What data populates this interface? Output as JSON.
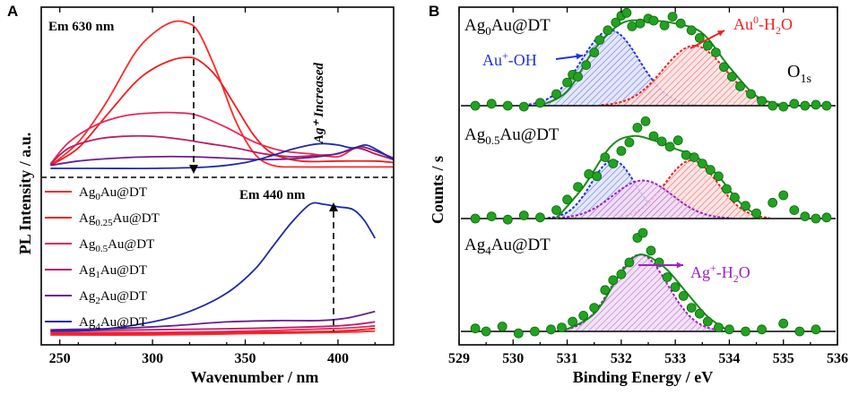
{
  "panel_a": {
    "label": "A",
    "ylabel": "PL Intensity / a.u.",
    "em_top": "Em 630 nm",
    "em_bottom": "Em 440 nm",
    "trend": "Ag⁺ Increased"
  },
  "panel_b": {
    "label": "B",
    "ylabel": "Counts / s",
    "o1s_main": "O",
    "o1s_sub": "1s"
  },
  "chart_data": [
    {
      "type": "line",
      "title": "",
      "xlabel": "Wavenumber / nm",
      "ylabel": "PL Intensity / a.u.",
      "xlim": [
        240,
        430
      ],
      "xticks": [
        "250",
        "300",
        "350",
        "400"
      ],
      "legend": [
        {
          "base": "Ag",
          "sub": "0",
          "rest": "Au@DT",
          "color": "#ff2a2a"
        },
        {
          "base": "Ag",
          "sub": "0.25",
          "rest": "Au@DT",
          "color": "#f21c1c"
        },
        {
          "base": "Ag",
          "sub": "0.5",
          "rest": "Au@DT",
          "color": "#e8285a"
        },
        {
          "base": "Ag",
          "sub": "1",
          "rest": "Au@DT",
          "color": "#b81e68"
        },
        {
          "base": "Ag",
          "sub": "2",
          "rest": "Au@DT",
          "color": "#6a1e8c"
        },
        {
          "base": "Ag",
          "sub": "4",
          "rest": "Au@DT",
          "color": "#1c2aa8"
        }
      ],
      "em630_series": [
        {
          "name": "Ag0Au@DT",
          "color": "#ff2a2a",
          "x": [
            245,
            260,
            275,
            290,
            300,
            310,
            318,
            325,
            335,
            345,
            355,
            365,
            380,
            400,
            420,
            430
          ],
          "y": [
            0.02,
            0.18,
            0.45,
            0.78,
            0.92,
            1.0,
            1.0,
            0.93,
            0.65,
            0.32,
            0.1,
            0.02,
            0.01,
            0.01,
            0.01,
            0.01
          ]
        },
        {
          "name": "Ag0.25Au@DT",
          "color": "#f21c1c",
          "x": [
            245,
            260,
            275,
            290,
            300,
            310,
            318,
            325,
            335,
            345,
            355,
            365,
            380,
            400,
            420,
            430
          ],
          "y": [
            0.02,
            0.14,
            0.36,
            0.58,
            0.68,
            0.74,
            0.76,
            0.74,
            0.62,
            0.42,
            0.22,
            0.1,
            0.05,
            0.05,
            0.05,
            0.04
          ]
        },
        {
          "name": "Ag0.5Au@DT",
          "color": "#e8285a",
          "x": [
            245,
            255,
            270,
            285,
            300,
            315,
            325,
            340,
            355,
            370,
            385,
            400,
            410,
            420,
            430
          ],
          "y": [
            0.03,
            0.18,
            0.3,
            0.36,
            0.38,
            0.38,
            0.36,
            0.28,
            0.18,
            0.12,
            0.1,
            0.08,
            0.14,
            0.1,
            0.06
          ]
        },
        {
          "name": "Ag1Au@DT",
          "color": "#b81e68",
          "x": [
            245,
            255,
            270,
            285,
            300,
            315,
            330,
            345,
            360,
            375,
            390,
            400,
            410,
            420,
            430
          ],
          "y": [
            0.03,
            0.14,
            0.2,
            0.22,
            0.22,
            0.2,
            0.17,
            0.14,
            0.1,
            0.08,
            0.09,
            0.1,
            0.14,
            0.1,
            0.06
          ]
        },
        {
          "name": "Ag2Au@DT",
          "color": "#6a1e8c",
          "x": [
            245,
            260,
            280,
            300,
            320,
            340,
            360,
            380,
            395,
            405,
            412,
            420,
            430
          ],
          "y": [
            0.02,
            0.05,
            0.07,
            0.08,
            0.08,
            0.07,
            0.06,
            0.07,
            0.09,
            0.12,
            0.15,
            0.12,
            0.07
          ]
        },
        {
          "name": "Ag4Au@DT",
          "color": "#1c2aa8",
          "x": [
            245,
            270,
            300,
            330,
            350,
            365,
            375,
            385,
            392,
            400,
            408,
            415,
            422,
            430
          ],
          "y": [
            0.0,
            0.0,
            0.0,
            0.01,
            0.04,
            0.09,
            0.13,
            0.16,
            0.17,
            0.16,
            0.14,
            0.16,
            0.12,
            0.06
          ]
        }
      ],
      "em440_series": [
        {
          "name": "Ag0Au@DT",
          "color": "#ff2a2a",
          "x": [
            245,
            300,
            350,
            400,
            420
          ],
          "y": [
            0.0,
            0.0,
            0.01,
            0.02,
            0.03
          ]
        },
        {
          "name": "Ag0.25Au@DT",
          "color": "#f21c1c",
          "x": [
            245,
            300,
            350,
            400,
            420
          ],
          "y": [
            0.01,
            0.01,
            0.02,
            0.03,
            0.05
          ]
        },
        {
          "name": "Ag0.5Au@DT",
          "color": "#e8285a",
          "x": [
            245,
            300,
            350,
            400,
            420
          ],
          "y": [
            0.02,
            0.02,
            0.03,
            0.05,
            0.07
          ]
        },
        {
          "name": "Ag1Au@DT",
          "color": "#b81e68",
          "x": [
            245,
            300,
            350,
            400,
            420
          ],
          "y": [
            0.03,
            0.04,
            0.05,
            0.07,
            0.1
          ]
        },
        {
          "name": "Ag2Au@DT",
          "color": "#6a1e8c",
          "x": [
            245,
            280,
            310,
            340,
            370,
            390,
            405,
            420
          ],
          "y": [
            0.04,
            0.05,
            0.07,
            0.1,
            0.11,
            0.11,
            0.13,
            0.18
          ]
        },
        {
          "name": "Ag4Au@DT",
          "color": "#1c2aa8",
          "x": [
            245,
            270,
            300,
            320,
            340,
            355,
            365,
            375,
            385,
            392,
            400,
            408,
            414,
            420
          ],
          "y": [
            0.03,
            0.04,
            0.1,
            0.18,
            0.32,
            0.5,
            0.68,
            0.86,
            1.0,
            1.0,
            0.98,
            0.96,
            0.88,
            0.74
          ]
        }
      ]
    },
    {
      "type": "scatter",
      "title": "",
      "xlabel": "Binding Energy / eV",
      "ylabel": "Counts / s",
      "xlim": [
        529,
        536
      ],
      "xticks": [
        "529",
        "530",
        "531",
        "532",
        "533",
        "534",
        "535",
        "536"
      ],
      "spectra": [
        {
          "sample": {
            "base": "Ag",
            "sub": "0",
            "rest": "Au@DT"
          },
          "envelope": [
            [
              530.5,
              0.0
            ],
            [
              531.0,
              0.15
            ],
            [
              531.5,
              0.58
            ],
            [
              532.0,
              0.85
            ],
            [
              532.5,
              0.88
            ],
            [
              533.0,
              0.85
            ],
            [
              533.5,
              0.75
            ],
            [
              534.0,
              0.4
            ],
            [
              534.5,
              0.1
            ],
            [
              535.0,
              0.0
            ]
          ],
          "components": [
            {
              "name": "Au+-OH",
              "center": 531.8,
              "height": 0.78,
              "fwhm": 1.25,
              "color": "#2233dd",
              "fill": "#4f5fe0"
            },
            {
              "name": "Au0-H2O",
              "center": 533.35,
              "height": 0.62,
              "fwhm": 1.35,
              "color": "#ee2222",
              "fill": "#ee5050"
            }
          ],
          "labels": [
            {
              "main": "Au",
              "sup": "+",
              "rest": "-OH",
              "color": "#2233dd"
            },
            {
              "main": "Au",
              "sup": "0",
              "rest": "-H",
              "sub": "2",
              "tail": "O",
              "color": "#ee2222"
            }
          ],
          "points": [
            [
              529.3,
              0.0
            ],
            [
              529.6,
              0.02
            ],
            [
              529.9,
              0.0
            ],
            [
              530.2,
              -0.01
            ],
            [
              530.5,
              0.03
            ],
            [
              530.8,
              0.12
            ],
            [
              531.0,
              0.24
            ],
            [
              531.1,
              0.32
            ],
            [
              531.2,
              0.3
            ],
            [
              531.35,
              0.42
            ],
            [
              531.5,
              0.55
            ],
            [
              531.6,
              0.68
            ],
            [
              531.75,
              0.78
            ],
            [
              531.9,
              0.86
            ],
            [
              532.0,
              0.93
            ],
            [
              532.1,
              0.96
            ],
            [
              532.2,
              0.82
            ],
            [
              532.35,
              0.85
            ],
            [
              532.5,
              0.9
            ],
            [
              532.6,
              0.88
            ],
            [
              532.8,
              0.83
            ],
            [
              532.95,
              0.92
            ],
            [
              533.1,
              0.85
            ],
            [
              533.3,
              0.78
            ],
            [
              533.45,
              0.7
            ],
            [
              533.6,
              0.62
            ],
            [
              533.75,
              0.55
            ],
            [
              533.9,
              0.4
            ],
            [
              534.05,
              0.3
            ],
            [
              534.2,
              0.2
            ],
            [
              534.4,
              0.12
            ],
            [
              534.6,
              0.05
            ],
            [
              534.8,
              0.0
            ],
            [
              535.0,
              -0.01
            ],
            [
              535.2,
              0.02
            ],
            [
              535.4,
              0.0
            ],
            [
              535.6,
              0.01
            ],
            [
              535.8,
              0.0
            ]
          ]
        },
        {
          "sample": {
            "base": "Ag",
            "sub": "0.5",
            "rest": "Au@DT"
          },
          "envelope": [
            [
              530.8,
              0.0
            ],
            [
              531.3,
              0.3
            ],
            [
              531.8,
              0.68
            ],
            [
              532.2,
              0.78
            ],
            [
              532.6,
              0.74
            ],
            [
              533.0,
              0.66
            ],
            [
              533.4,
              0.58
            ],
            [
              533.8,
              0.4
            ],
            [
              534.2,
              0.15
            ],
            [
              534.6,
              0.0
            ]
          ],
          "components": [
            {
              "name": "Au+-OH",
              "center": 531.85,
              "height": 0.55,
              "fwhm": 0.95,
              "color": "#2233dd",
              "fill": "#4f5fe0"
            },
            {
              "name": "Au0-H2O",
              "center": 533.3,
              "height": 0.55,
              "fwhm": 1.15,
              "color": "#ee2222",
              "fill": "#ee5050"
            },
            {
              "name": "Ag+-H2O",
              "center": 532.4,
              "height": 0.36,
              "fwhm": 1.3,
              "color": "#a020c0",
              "fill": "#c070d8"
            }
          ],
          "labels": [],
          "points": [
            [
              529.3,
              0.0
            ],
            [
              529.6,
              0.02
            ],
            [
              529.9,
              -0.01
            ],
            [
              530.2,
              0.03
            ],
            [
              530.5,
              0.01
            ],
            [
              530.8,
              0.08
            ],
            [
              531.0,
              0.18
            ],
            [
              531.2,
              0.3
            ],
            [
              531.4,
              0.42
            ],
            [
              531.55,
              0.4
            ],
            [
              531.7,
              0.58
            ],
            [
              531.85,
              0.52
            ],
            [
              532.0,
              0.64
            ],
            [
              532.15,
              0.72
            ],
            [
              532.3,
              0.86
            ],
            [
              532.45,
              0.92
            ],
            [
              532.6,
              0.78
            ],
            [
              532.75,
              0.73
            ],
            [
              532.9,
              0.68
            ],
            [
              533.05,
              0.74
            ],
            [
              533.2,
              0.6
            ],
            [
              533.35,
              0.58
            ],
            [
              533.5,
              0.52
            ],
            [
              533.65,
              0.46
            ],
            [
              533.8,
              0.4
            ],
            [
              533.95,
              0.28
            ],
            [
              534.1,
              0.2
            ],
            [
              534.3,
              0.12
            ],
            [
              534.5,
              0.05
            ],
            [
              534.8,
              0.15
            ],
            [
              535.0,
              0.22
            ],
            [
              535.2,
              0.08
            ],
            [
              535.4,
              0.02
            ],
            [
              535.6,
              0.0
            ],
            [
              535.8,
              0.01
            ]
          ]
        },
        {
          "sample": {
            "base": "Ag",
            "sub": "4",
            "rest": "Au@DT"
          },
          "envelope": [
            [
              530.9,
              0.0
            ],
            [
              531.5,
              0.18
            ],
            [
              532.0,
              0.6
            ],
            [
              532.35,
              0.78
            ],
            [
              532.8,
              0.65
            ],
            [
              533.2,
              0.4
            ],
            [
              533.6,
              0.15
            ],
            [
              534.0,
              0.0
            ]
          ],
          "components": [
            {
              "name": "Ag+-H2O",
              "center": 532.35,
              "height": 0.78,
              "fwhm": 1.2,
              "color": "#a020c0",
              "fill": "#c070d8"
            }
          ],
          "labels": [
            {
              "main": "Ag",
              "sup": "+",
              "rest": "-H",
              "sub": "2",
              "tail": "O",
              "color": "#a020c0"
            }
          ],
          "points": [
            [
              529.3,
              0.03
            ],
            [
              529.5,
              0.0
            ],
            [
              529.8,
              0.05
            ],
            [
              530.1,
              -0.02
            ],
            [
              530.4,
              0.0
            ],
            [
              530.7,
              0.02
            ],
            [
              530.9,
              0.04
            ],
            [
              531.1,
              0.1
            ],
            [
              531.3,
              0.16
            ],
            [
              531.5,
              0.24
            ],
            [
              531.7,
              0.42
            ],
            [
              531.85,
              0.52
            ],
            [
              532.0,
              0.58
            ],
            [
              532.15,
              0.7
            ],
            [
              532.3,
              0.95
            ],
            [
              532.4,
              1.0
            ],
            [
              532.55,
              0.82
            ],
            [
              532.7,
              0.7
            ],
            [
              532.85,
              0.55
            ],
            [
              533.0,
              0.45
            ],
            [
              533.15,
              0.36
            ],
            [
              533.3,
              0.24
            ],
            [
              533.45,
              0.18
            ],
            [
              533.6,
              0.1
            ],
            [
              533.8,
              0.04
            ],
            [
              534.0,
              0.02
            ],
            [
              534.3,
              0.0
            ],
            [
              534.6,
              0.02
            ],
            [
              535.0,
              0.08
            ],
            [
              535.3,
              0.0
            ],
            [
              535.6,
              0.02
            ]
          ]
        }
      ]
    }
  ]
}
